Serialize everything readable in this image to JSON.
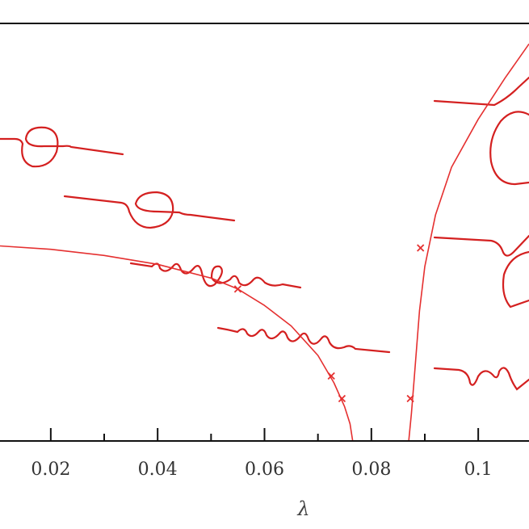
{
  "chart_data": {
    "type": "line",
    "title": "",
    "xlabel": "λ",
    "ylabel": "",
    "xlim": [
      0.0105,
      0.1095
    ],
    "x_ticks": [
      {
        "value": 0.02,
        "label": "0.02"
      },
      {
        "value": 0.04,
        "label": "0.04"
      },
      {
        "value": 0.06,
        "label": "0.06"
      },
      {
        "value": 0.08,
        "label": "0.08"
      },
      {
        "value": 0.1,
        "label": "0.1"
      }
    ],
    "x_minor_ticks": [
      0.03,
      0.05,
      0.07,
      0.09
    ],
    "grid": false,
    "series_color": "#e53030",
    "series": [
      {
        "role": "curve",
        "x": [
          0.0105,
          0.02,
          0.03,
          0.04,
          0.05,
          0.055,
          0.06,
          0.065,
          0.07,
          0.073,
          0.075,
          0.076,
          0.0765
        ],
        "y": [
          0.285,
          0.28,
          0.271,
          0.258,
          0.238,
          0.222,
          0.198,
          0.168,
          0.125,
          0.085,
          0.05,
          0.025,
          0.0
        ]
      },
      {
        "role": "curve",
        "x": [
          0.087,
          0.0875,
          0.088,
          0.0885,
          0.089,
          0.09,
          0.092,
          0.095,
          0.1,
          0.105,
          0.1095
        ],
        "y": [
          0.0,
          0.04,
          0.09,
          0.14,
          0.19,
          0.255,
          0.33,
          0.4,
          0.47,
          0.53,
          0.58
        ]
      },
      {
        "role": "markers",
        "marker": "x",
        "x": [
          0.055,
          0.0725,
          0.0745,
          0.0873,
          0.0892
        ],
        "y": [
          0.222,
          0.095,
          0.062,
          0.062,
          0.282
        ]
      }
    ]
  }
}
